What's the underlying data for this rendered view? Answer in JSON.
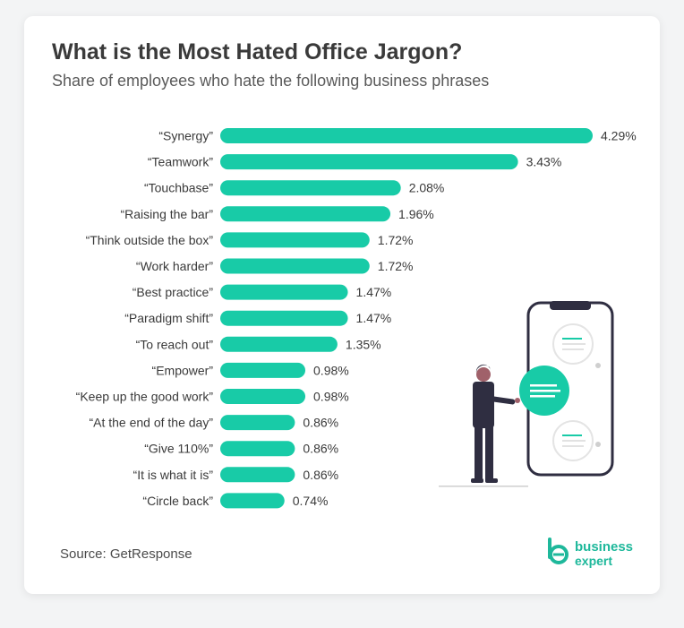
{
  "header": {
    "title": "What is the Most Hated Office Jargon?",
    "subtitle": "Share of employees who hate the following business phrases"
  },
  "footer": {
    "source": "Source: GetResponse"
  },
  "logo": {
    "line1": "business",
    "line2": "expert"
  },
  "colors": {
    "bar": "#18cba7",
    "text": "#3a3a3a",
    "brand": "#1eb89b"
  },
  "chart_data": {
    "type": "bar",
    "orientation": "horizontal",
    "categories": [
      "“Synergy”",
      "“Teamwork”",
      "“Touchbase”",
      "“Raising the bar”",
      "“Think outside the box”",
      "“Work harder”",
      "“Best practice”",
      "“Paradigm shift”",
      "“To reach out”",
      "“Empower”",
      "“Keep up the good work”",
      "“At the end of the day”",
      "“Give 110%”",
      "“It is what it is”",
      "“Circle back”"
    ],
    "values": [
      4.29,
      3.43,
      2.08,
      1.96,
      1.72,
      1.72,
      1.47,
      1.47,
      1.35,
      0.98,
      0.98,
      0.86,
      0.86,
      0.86,
      0.74
    ],
    "value_labels": [
      "4.29%",
      "3.43%",
      "2.08%",
      "1.96%",
      "1.72%",
      "1.72%",
      "1.47%",
      "1.47%",
      "1.35%",
      "0.98%",
      "0.98%",
      "0.86%",
      "0.86%",
      "0.86%",
      "0.74%"
    ],
    "unit": "%",
    "title": "What is the Most Hated Office Jargon?",
    "subtitle": "Share of employees who hate the following business phrases",
    "xlim": [
      0,
      4.29
    ],
    "grid": false,
    "legend": "none"
  }
}
